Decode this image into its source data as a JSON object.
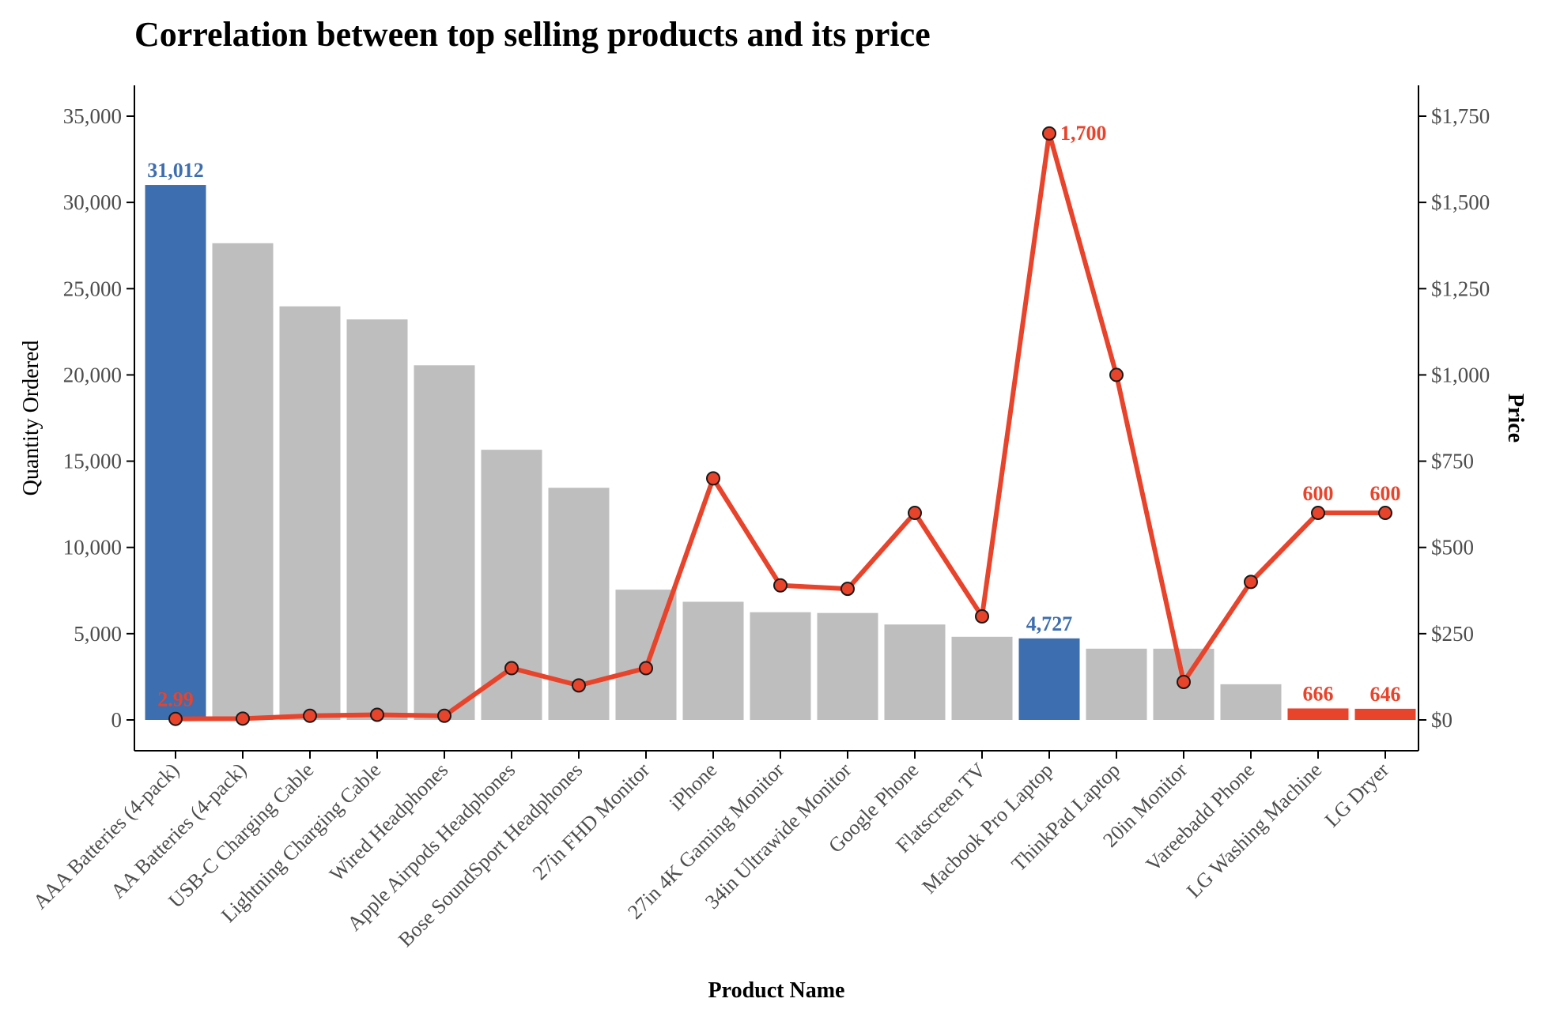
{
  "chart_data": {
    "type": "bar",
    "title": "Correlation between top selling products and its price",
    "xlabel": "Product Name",
    "ylabel": "Quantity Ordered",
    "y2label": "Price",
    "ylim": [
      0,
      35000
    ],
    "y2lim": [
      0,
      1750
    ],
    "y_ticks": [
      "0",
      "5,000",
      "10,000",
      "15,000",
      "20,000",
      "25,000",
      "30,000",
      "35,000"
    ],
    "y_tick_values": [
      0,
      5000,
      10000,
      15000,
      20000,
      25000,
      30000,
      35000
    ],
    "y2_ticks": [
      "$0",
      "$250",
      "$500",
      "$750",
      "$1,000",
      "$1,250",
      "$1,500",
      "$1,750"
    ],
    "y2_tick_values": [
      0,
      250,
      500,
      750,
      1000,
      1250,
      1500,
      1750
    ],
    "grid": false,
    "colors": {
      "bar_default": "#bebebe",
      "bar_highlight": "#3d6eaf",
      "bar_low": "#e8432b",
      "line": "#e8432b",
      "point_fill": "#e8432b",
      "point_stroke": "#1a1a1a",
      "label_blue": "#3d6eaf",
      "label_red": "#e8432b"
    },
    "categories": [
      "AAA Batteries (4-pack)",
      "AA Batteries (4-pack)",
      "USB-C Charging Cable",
      "Lightning Charging Cable",
      "Wired Headphones",
      "Apple Airpods Headphones",
      "Bose SoundSport Headphones",
      "27in FHD Monitor",
      "iPhone",
      "27in 4K Gaming Monitor",
      "34in Ultrawide Monitor",
      "Google Phone",
      "Flatscreen TV",
      "Macbook Pro Laptop",
      "ThinkPad Laptop",
      "20in Monitor",
      "Vareebadd Phone",
      "LG Washing Machine",
      "LG Dryer"
    ],
    "series": [
      {
        "name": "Quantity Ordered",
        "type": "bar",
        "axis": "left",
        "values": [
          31012,
          27635,
          23975,
          23217,
          20557,
          15661,
          13457,
          7550,
          6849,
          6244,
          6199,
          5532,
          4819,
          4727,
          4130,
          4129,
          2068,
          666,
          646
        ],
        "highlight": [
          "max",
          null,
          null,
          null,
          null,
          null,
          null,
          null,
          null,
          null,
          null,
          null,
          null,
          "max",
          null,
          null,
          null,
          "low",
          "low"
        ]
      },
      {
        "name": "Price",
        "type": "line",
        "axis": "right",
        "values": [
          2.99,
          3.84,
          11.95,
          14.95,
          11.99,
          150,
          99.99,
          149.99,
          700,
          389.99,
          379.99,
          600,
          300,
          1700,
          999.99,
          109.99,
          400,
          600,
          600
        ]
      }
    ],
    "bar_labels": [
      {
        "index": 0,
        "text": "31,012",
        "color": "label_blue"
      },
      {
        "index": 13,
        "text": "4,727",
        "color": "label_blue"
      },
      {
        "index": 17,
        "text": "666",
        "color": "label_red"
      },
      {
        "index": 18,
        "text": "646",
        "color": "label_red"
      }
    ],
    "line_labels": [
      {
        "index": 0,
        "text": "2.99",
        "position": "above"
      },
      {
        "index": 13,
        "text": "1,700",
        "position": "right"
      },
      {
        "index": 17,
        "text": "600",
        "position": "above"
      },
      {
        "index": 18,
        "text": "600",
        "position": "above"
      }
    ]
  }
}
